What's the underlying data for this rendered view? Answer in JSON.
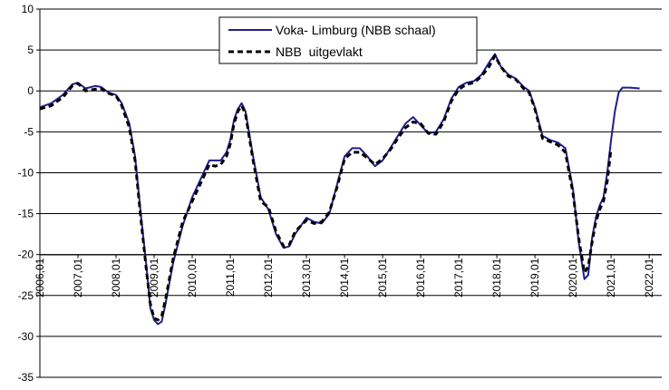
{
  "chart_data": {
    "type": "line",
    "title": "",
    "xlabel": "",
    "ylabel": "",
    "ylim": [
      -35,
      10
    ],
    "yticks": [
      10,
      5,
      0,
      -5,
      -10,
      -15,
      -20,
      -25,
      -30,
      -35
    ],
    "grid": "horizontal",
    "legend_position": "top-center",
    "x_tick_labels": [
      "2006,01",
      "2007,01",
      "2008,01",
      "2009,01",
      "2010,01",
      "2011,01",
      "2012,01",
      "2013,01",
      "2014,01",
      "2015,01",
      "2016,01",
      "2017,01",
      "2018,01",
      "2019,01",
      "2020,01",
      "2021,01",
      "2022,01"
    ],
    "series": [
      {
        "name": "Voka- Limburg (NBB schaal)",
        "color": "#1f1f8c",
        "style": "solid",
        "x": [
          2006.0,
          2006.3,
          2006.6,
          2006.85,
          2007.0,
          2007.2,
          2007.45,
          2007.6,
          2007.8,
          2008.0,
          2008.15,
          2008.35,
          2008.5,
          2008.65,
          2008.8,
          2008.9,
          2009.0,
          2009.1,
          2009.2,
          2009.3,
          2009.5,
          2009.75,
          2010.0,
          2010.25,
          2010.45,
          2010.6,
          2010.75,
          2010.9,
          2011.0,
          2011.1,
          2011.2,
          2011.3,
          2011.4,
          2011.6,
          2011.8,
          2012.0,
          2012.2,
          2012.4,
          2012.55,
          2012.7,
          2013.0,
          2013.2,
          2013.4,
          2013.6,
          2013.8,
          2014.0,
          2014.2,
          2014.4,
          2014.6,
          2014.8,
          2015.0,
          2015.2,
          2015.4,
          2015.6,
          2015.8,
          2016.0,
          2016.2,
          2016.4,
          2016.6,
          2016.8,
          2017.0,
          2017.2,
          2017.4,
          2017.6,
          2017.8,
          2017.95,
          2018.1,
          2018.3,
          2018.5,
          2018.7,
          2018.85,
          2019.0,
          2019.2,
          2019.4,
          2019.6,
          2019.8,
          2020.0,
          2020.15,
          2020.3,
          2020.4,
          2020.5,
          2020.6,
          2020.7,
          2020.8,
          2020.9,
          2021.0,
          2021.1,
          2021.2,
          2021.3,
          2021.5,
          2021.75
        ],
        "y": [
          -2.0,
          -1.5,
          -0.5,
          0.8,
          1.0,
          0.3,
          0.6,
          0.5,
          -0.2,
          -0.5,
          -1.5,
          -4.0,
          -8.0,
          -15.0,
          -21.5,
          -26.5,
          -28.0,
          -28.5,
          -28.2,
          -26.0,
          -21.0,
          -16.5,
          -13.0,
          -10.5,
          -8.5,
          -8.5,
          -8.5,
          -7.5,
          -6.0,
          -3.5,
          -2.2,
          -1.5,
          -2.5,
          -8.0,
          -13.0,
          -14.5,
          -17.5,
          -19.2,
          -19.0,
          -17.5,
          -15.5,
          -16.0,
          -16.2,
          -15.0,
          -11.5,
          -8.0,
          -7.0,
          -7.0,
          -8.0,
          -9.2,
          -8.5,
          -7.0,
          -5.5,
          -4.0,
          -3.2,
          -4.2,
          -5.2,
          -5.0,
          -3.5,
          -1.0,
          0.5,
          1.0,
          1.2,
          2.0,
          3.5,
          4.5,
          3.0,
          2.0,
          1.5,
          0.5,
          0.0,
          -2.0,
          -5.5,
          -6.0,
          -6.3,
          -7.0,
          -12.0,
          -18.5,
          -23.0,
          -22.5,
          -18.0,
          -15.5,
          -14.0,
          -13.0,
          -10.0,
          -6.0,
          -2.5,
          -0.2,
          0.4,
          0.4,
          0.3
        ]
      },
      {
        "name": "NBB  uitgevlakt",
        "color": "#000000",
        "style": "dashed",
        "x": [
          2006.0,
          2006.3,
          2006.6,
          2006.85,
          2007.0,
          2007.2,
          2007.45,
          2007.6,
          2007.8,
          2008.0,
          2008.15,
          2008.35,
          2008.5,
          2008.65,
          2008.8,
          2008.9,
          2009.0,
          2009.1,
          2009.2,
          2009.3,
          2009.5,
          2009.75,
          2010.0,
          2010.25,
          2010.45,
          2010.6,
          2010.75,
          2010.9,
          2011.0,
          2011.1,
          2011.2,
          2011.3,
          2011.4,
          2011.6,
          2011.8,
          2012.0,
          2012.2,
          2012.4,
          2012.55,
          2012.7,
          2013.0,
          2013.2,
          2013.4,
          2013.6,
          2013.8,
          2014.0,
          2014.2,
          2014.4,
          2014.6,
          2014.8,
          2015.0,
          2015.2,
          2015.4,
          2015.6,
          2015.8,
          2016.0,
          2016.2,
          2016.4,
          2016.6,
          2016.8,
          2017.0,
          2017.2,
          2017.4,
          2017.6,
          2017.8,
          2017.95,
          2018.1,
          2018.3,
          2018.5,
          2018.7,
          2018.85,
          2019.0,
          2019.2,
          2019.4,
          2019.6,
          2019.8,
          2020.0,
          2020.15,
          2020.3,
          2020.4,
          2020.5,
          2020.6,
          2020.7,
          2020.8,
          2020.9,
          2021.0
        ],
        "y": [
          -2.2,
          -1.8,
          -0.8,
          0.6,
          0.9,
          0.0,
          0.2,
          0.3,
          -0.3,
          -0.6,
          -1.8,
          -4.5,
          -8.5,
          -15.5,
          -22.0,
          -26.0,
          -27.8,
          -28.0,
          -27.5,
          -25.5,
          -20.5,
          -16.0,
          -13.5,
          -11.0,
          -9.0,
          -9.2,
          -9.0,
          -8.0,
          -6.5,
          -4.0,
          -2.5,
          -1.8,
          -2.8,
          -8.5,
          -13.5,
          -14.2,
          -17.2,
          -19.0,
          -18.8,
          -17.2,
          -15.8,
          -16.2,
          -16.0,
          -14.8,
          -11.8,
          -8.3,
          -7.5,
          -7.5,
          -8.2,
          -9.0,
          -8.3,
          -7.2,
          -5.8,
          -4.5,
          -3.8,
          -4.0,
          -5.2,
          -5.3,
          -3.8,
          -1.3,
          0.2,
          0.8,
          1.0,
          1.8,
          3.0,
          4.3,
          3.0,
          1.8,
          1.4,
          0.3,
          -0.2,
          -2.2,
          -5.8,
          -6.2,
          -6.6,
          -7.5,
          -12.5,
          -18.0,
          -22.2,
          -21.5,
          -18.5,
          -16.0,
          -14.5,
          -13.5,
          -11.0,
          -7.0
        ]
      }
    ]
  }
}
